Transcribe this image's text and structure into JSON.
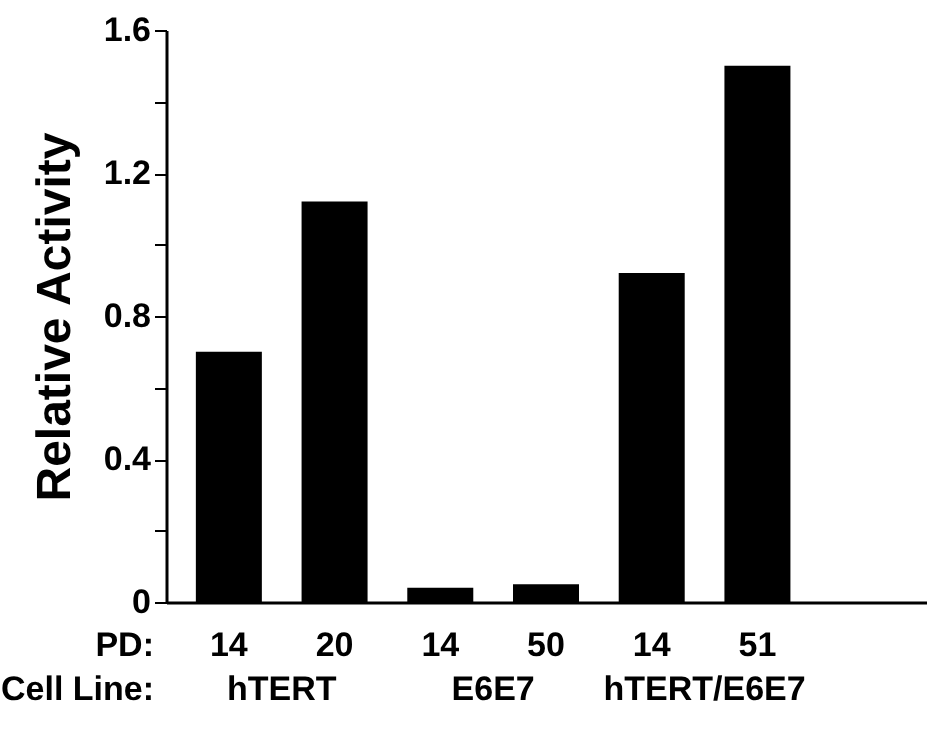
{
  "chart_data": {
    "type": "bar",
    "ylabel": "Relative Activity",
    "categories": [
      "14",
      "20",
      "14",
      "50",
      "14",
      "51"
    ],
    "values": [
      0.7,
      1.12,
      0.04,
      0.05,
      0.92,
      1.5
    ],
    "color": "#000000",
    "ylim": [
      0,
      1.6
    ],
    "yticks": [
      0,
      {
        "value": 0.2,
        "label": null
      },
      0.4,
      {
        "value": 0.6,
        "label": null
      },
      0.8,
      {
        "value": 1.0,
        "label": null
      },
      1.2,
      {
        "value": 1.4,
        "label": null
      },
      1.6
    ],
    "grid": false,
    "annotations": [
      "PD:",
      "Cell Line:",
      "hTERT",
      "E6E7",
      "hTERT/E6E7"
    ]
  }
}
